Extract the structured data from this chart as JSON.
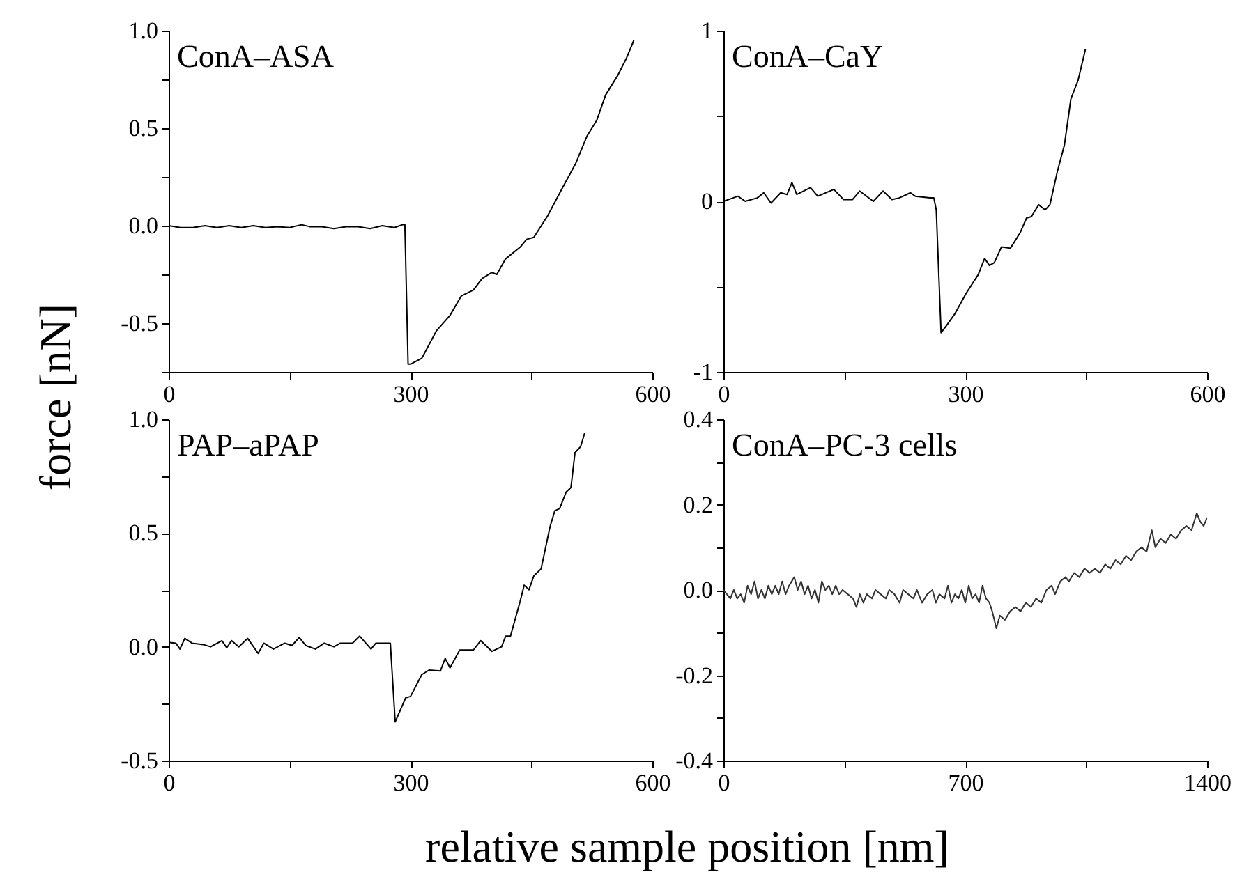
{
  "chart_data": [
    {
      "type": "line",
      "title": "ConA–ASA",
      "ylabel": "force [nN]",
      "xlim": [
        0,
        600
      ],
      "xticks": [
        0,
        {
          "value": 150,
          "label": null
        },
        300,
        {
          "value": 450,
          "label": null
        },
        600
      ],
      "ylim": [
        -0.75,
        1.0
      ],
      "yticks": [
        {
          "value": -0.75,
          "label": null
        },
        {
          "value": -0.5,
          "label": "-0.5"
        },
        {
          "value": -0.25,
          "label": null
        },
        {
          "value": 0,
          "label": "0.0"
        },
        {
          "value": 0.25,
          "label": null
        },
        {
          "value": 0.5,
          "label": "0.5"
        },
        {
          "value": 0.75,
          "label": null
        },
        {
          "value": 1.0,
          "label": "1.0"
        }
      ],
      "series": [
        {
          "color": "#000000",
          "x": [
            0,
            15,
            30,
            45,
            60,
            75,
            90,
            105,
            120,
            135,
            150,
            165,
            175,
            190,
            205,
            220,
            235,
            250,
            265,
            280,
            290,
            293,
            297,
            300,
            314,
            332,
            349,
            363,
            378,
            389,
            401,
            407,
            418,
            436,
            444,
            453,
            470,
            488,
            505,
            519,
            531,
            542,
            557,
            568,
            577
          ],
          "values": [
            0,
            -0.01,
            -0.01,
            0,
            -0.01,
            0,
            -0.01,
            0,
            -0.01,
            -0.005,
            -0.01,
            0.005,
            -0.005,
            -0.005,
            -0.015,
            -0.005,
            -0.005,
            -0.015,
            0,
            -0.01,
            0.005,
            0.005,
            -0.71,
            -0.71,
            -0.68,
            -0.54,
            -0.46,
            -0.36,
            -0.33,
            -0.27,
            -0.24,
            -0.25,
            -0.17,
            -0.11,
            -0.07,
            -0.06,
            0.05,
            0.19,
            0.32,
            0.46,
            0.54,
            0.67,
            0.77,
            0.86,
            0.95
          ]
        }
      ]
    },
    {
      "type": "line",
      "title": "ConA–CaY",
      "xlim": [
        0,
        600
      ],
      "xticks": [
        0,
        {
          "value": 150,
          "label": null
        },
        300,
        {
          "value": 450,
          "label": null
        },
        600
      ],
      "ylim": [
        -1,
        1
      ],
      "yticks": [
        -1,
        {
          "value": -0.5,
          "label": null
        },
        0,
        {
          "value": 0.5,
          "label": null
        },
        1
      ],
      "series": [
        {
          "color": "#000000",
          "x": [
            0,
            18,
            27,
            42,
            50,
            59,
            71,
            79,
            85,
            91,
            108,
            117,
            137,
            149,
            160,
            169,
            186,
            198,
            209,
            218,
            232,
            238,
            256,
            261,
            264,
            270,
            278,
            287,
            301,
            316,
            324,
            330,
            336,
            345,
            356,
            368,
            376,
            382,
            391,
            399,
            405,
            414,
            423,
            431,
            440,
            449
          ],
          "values": [
            0,
            0.03,
            0,
            0.02,
            0.05,
            -0.01,
            0.05,
            0.04,
            0.11,
            0.04,
            0.08,
            0.03,
            0.07,
            0.01,
            0.01,
            0.06,
            0,
            0.06,
            0.01,
            0.02,
            0.05,
            0.03,
            0.02,
            0.02,
            -0.05,
            -0.77,
            -0.72,
            -0.66,
            -0.54,
            -0.43,
            -0.335,
            -0.376,
            -0.36,
            -0.267,
            -0.275,
            -0.185,
            -0.098,
            -0.09,
            -0.02,
            -0.05,
            -0.02,
            0.17,
            0.33,
            0.6,
            0.71,
            0.89
          ]
        }
      ]
    },
    {
      "type": "line",
      "title": "PAP–aPAP",
      "xlabel": "relative sample position [nm]",
      "xlim": [
        0,
        600
      ],
      "xticks": [
        0,
        {
          "value": 150,
          "label": null
        },
        300,
        {
          "value": 450,
          "label": null
        },
        600
      ],
      "ylim": [
        -0.5,
        1.0
      ],
      "yticks": [
        {
          "value": -0.5,
          "label": "-0.5"
        },
        {
          "value": -0.25,
          "label": null
        },
        {
          "value": 0,
          "label": "0.0"
        },
        {
          "value": 0.25,
          "label": null
        },
        {
          "value": 0.5,
          "label": "0.5"
        },
        {
          "value": 0.75,
          "label": null
        },
        {
          "value": 1.0,
          "label": "1.0"
        }
      ],
      "series": [
        {
          "color": "#000000",
          "x": [
            0,
            9,
            14,
            20,
            29,
            43,
            52,
            66,
            72,
            78,
            87,
            98,
            111,
            118,
            130,
            144,
            153,
            162,
            170,
            182,
            193,
            205,
            213,
            228,
            237,
            251,
            257,
            275,
            281,
            294,
            300,
            314,
            323,
            337,
            343,
            349,
            361,
            378,
            387,
            401,
            413,
            418,
            424,
            436,
            441,
            447,
            453,
            462,
            473,
            479,
            485,
            493,
            499,
            504,
            511,
            516
          ],
          "values": [
            0.02,
            0.016,
            -0.01,
            0.037,
            0.016,
            0.01,
            0,
            0.027,
            -0.004,
            0.027,
            0,
            0.037,
            -0.029,
            0.016,
            -0.01,
            0.016,
            0.006,
            0.041,
            0.006,
            -0.01,
            0.016,
            0,
            0.016,
            0.016,
            0.047,
            -0.01,
            0.016,
            0.016,
            -0.33,
            -0.224,
            -0.218,
            -0.122,
            -0.102,
            -0.106,
            -0.051,
            -0.092,
            -0.014,
            -0.014,
            0.027,
            -0.02,
            0,
            0.047,
            0.047,
            0.2,
            0.271,
            0.251,
            0.312,
            0.343,
            0.527,
            0.598,
            0.608,
            0.68,
            0.7,
            0.853,
            0.88,
            0.939
          ]
        }
      ]
    },
    {
      "type": "line",
      "title": "ConA–PC-3 cells",
      "xlim": [
        0,
        1400
      ],
      "xticks": [
        0,
        {
          "value": 350,
          "label": null
        },
        700,
        {
          "value": 1050,
          "label": null
        },
        1400
      ],
      "ylim": [
        -0.4,
        0.4
      ],
      "yticks": [
        {
          "value": -0.4,
          "label": "-0.4"
        },
        {
          "value": -0.3,
          "label": null
        },
        {
          "value": -0.2,
          "label": "-0.2"
        },
        {
          "value": -0.1,
          "label": null
        },
        {
          "value": 0,
          "label": "0.0"
        },
        {
          "value": 0.1,
          "label": null
        },
        {
          "value": 0.2,
          "label": "0.2"
        },
        {
          "value": 0.3,
          "label": null
        },
        {
          "value": 0.4,
          "label": "0.4"
        }
      ],
      "series": [
        {
          "color": "#333333",
          "x": [
            0,
            10,
            20,
            30,
            40,
            50,
            60,
            70,
            80,
            90,
            100,
            110,
            120,
            130,
            140,
            150,
            160,
            170,
            180,
            190,
            205,
            215,
            225,
            235,
            245,
            255,
            265,
            275,
            285,
            295,
            305,
            315,
            325,
            335,
            345,
            360,
            375,
            385,
            395,
            405,
            415,
            430,
            440,
            455,
            470,
            480,
            495,
            510,
            520,
            535,
            550,
            560,
            575,
            590,
            605,
            615,
            625,
            640,
            650,
            660,
            670,
            680,
            690,
            700,
            710,
            720,
            730,
            740,
            750,
            760,
            770,
            778,
            790,
            800,
            815,
            830,
            845,
            860,
            875,
            890,
            905,
            920,
            935,
            950,
            960,
            975,
            990,
            1000,
            1015,
            1030,
            1045,
            1060,
            1075,
            1090,
            1105,
            1120,
            1135,
            1150,
            1165,
            1180,
            1195,
            1210,
            1225,
            1240,
            1250,
            1265,
            1280,
            1295,
            1310,
            1325,
            1340,
            1355,
            1370,
            1380,
            1390,
            1400
          ],
          "values": [
            0.0,
            -0.01,
            -0.02,
            0.0,
            -0.02,
            -0.01,
            -0.03,
            0.01,
            -0.01,
            0.02,
            -0.02,
            0.0,
            -0.02,
            0.01,
            -0.01,
            0.01,
            -0.01,
            0.02,
            -0.01,
            0.01,
            0.03,
            0.0,
            0.02,
            -0.01,
            0.01,
            -0.02,
            0.0,
            -0.03,
            0.02,
            0.0,
            0.01,
            -0.01,
            0.01,
            -0.01,
            0.0,
            -0.01,
            -0.02,
            -0.04,
            -0.01,
            -0.03,
            -0.01,
            -0.02,
            0.0,
            -0.01,
            -0.02,
            0.0,
            -0.01,
            -0.03,
            0.0,
            -0.01,
            -0.02,
            0.0,
            -0.03,
            -0.01,
            0.0,
            -0.03,
            -0.01,
            -0.02,
            0.01,
            -0.03,
            -0.01,
            -0.02,
            0.0,
            -0.03,
            0.01,
            -0.02,
            -0.01,
            -0.03,
            0.01,
            -0.02,
            -0.03,
            -0.05,
            -0.09,
            -0.06,
            -0.07,
            -0.05,
            -0.04,
            -0.05,
            -0.03,
            -0.04,
            -0.02,
            -0.03,
            0.0,
            0.01,
            -0.01,
            0.02,
            0.03,
            0.02,
            0.04,
            0.03,
            0.05,
            0.04,
            0.05,
            0.04,
            0.06,
            0.05,
            0.07,
            0.06,
            0.08,
            0.07,
            0.09,
            0.1,
            0.09,
            0.14,
            0.1,
            0.12,
            0.11,
            0.13,
            0.12,
            0.14,
            0.15,
            0.14,
            0.18,
            0.16,
            0.15,
            0.17
          ]
        }
      ]
    }
  ]
}
